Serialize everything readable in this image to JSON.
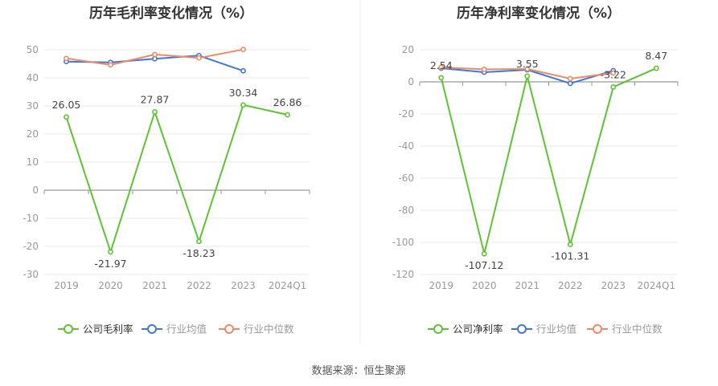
{
  "source_note": "数据来源：恒生聚源",
  "colors": {
    "company": "#5cc431",
    "industry_avg": "#3f78d8",
    "industry_median": "#f08a63",
    "axis": "#999999",
    "grid": "#e9e9e9",
    "tick_text": "#999999",
    "label_text": "#444444",
    "title_text": "#333333"
  },
  "chart_data": [
    {
      "type": "line",
      "title": "历年毛利率变化情况（%）",
      "categories": [
        "2019",
        "2020",
        "2021",
        "2022",
        "2023",
        "2024Q1"
      ],
      "ylim": [
        -30,
        50
      ],
      "yticks": [
        -30,
        -20,
        -10,
        0,
        10,
        20,
        30,
        40,
        50
      ],
      "grid": true,
      "legend_position": "bottom-center",
      "series": [
        {
          "name": "公司毛利率",
          "key": "company",
          "values": [
            26.05,
            -21.97,
            27.87,
            -18.23,
            30.34,
            26.86
          ],
          "labels": [
            "26.05",
            "-21.97",
            "27.87",
            "-18.23",
            "30.34",
            "26.86"
          ]
        },
        {
          "name": "行业均值",
          "key": "industry_avg",
          "values": [
            45.8,
            45.5,
            46.8,
            47.9,
            42.5,
            null
          ]
        },
        {
          "name": "行业中位数",
          "key": "industry_median",
          "values": [
            46.9,
            44.6,
            48.3,
            47.1,
            50.1,
            null
          ]
        }
      ]
    },
    {
      "type": "line",
      "title": "历年净利率变化情况（%）",
      "categories": [
        "2019",
        "2020",
        "2021",
        "2022",
        "2023",
        "2024Q1"
      ],
      "ylim": [
        -120,
        20
      ],
      "yticks": [
        -120,
        -100,
        -80,
        -60,
        -40,
        -20,
        0,
        20
      ],
      "grid": true,
      "legend_position": "bottom-center",
      "series": [
        {
          "name": "公司净利率",
          "key": "company",
          "values": [
            2.54,
            -107.12,
            3.55,
            -101.31,
            -3.22,
            8.47
          ],
          "labels": [
            "2.54",
            "-107.12",
            "3.55",
            "-101.31",
            "-3.22",
            "8.47"
          ]
        },
        {
          "name": "行业均值",
          "key": "industry_avg",
          "values": [
            8.5,
            6.0,
            7.5,
            -1.0,
            7.0,
            null
          ]
        },
        {
          "name": "行业中位数",
          "key": "industry_median",
          "values": [
            9.0,
            7.8,
            8.0,
            2.0,
            5.5,
            null
          ]
        }
      ]
    }
  ]
}
